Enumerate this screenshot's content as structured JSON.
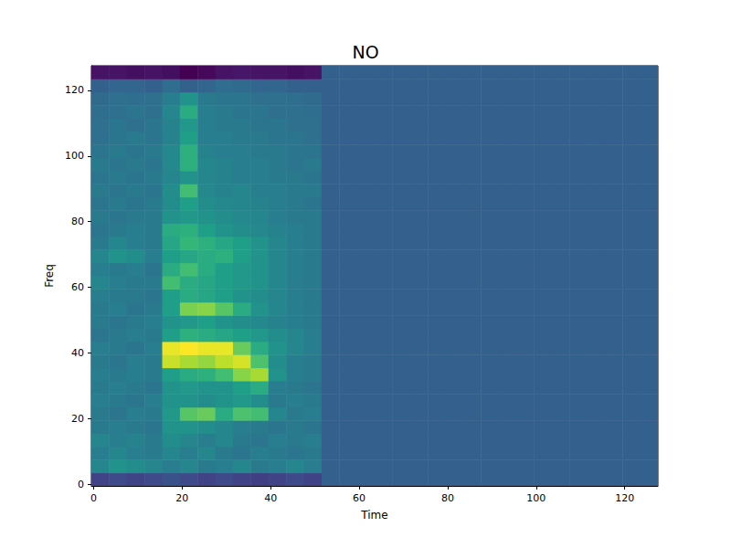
{
  "chart_data": {
    "type": "heatmap",
    "title": "NO",
    "x_label": "Time",
    "y_label": "Freq",
    "xlim": [
      -0.5,
      127.5
    ],
    "xticks": [
      0,
      20,
      40,
      60,
      80,
      100,
      120
    ],
    "ylim": [
      -0.5,
      127.5
    ],
    "yticks": [
      0,
      20,
      40,
      60,
      80,
      100,
      120
    ],
    "grid": false,
    "x": [
      1.5,
      5.5,
      9.5,
      13.5,
      17.5,
      21.5,
      25.5,
      29.5,
      33.5,
      37.5,
      41.5,
      45.5,
      49.5,
      53.5,
      57.5,
      61.5,
      65.5,
      69.5,
      73.5,
      77.5,
      81.5,
      85.5,
      89.5,
      93.5,
      97.5,
      101.5,
      105.5,
      109.5,
      113.5,
      117.5,
      121.5,
      125.5
    ],
    "y": [
      1.5,
      5.5,
      9.5,
      13.5,
      17.5,
      21.5,
      25.5,
      29.5,
      33.5,
      37.5,
      41.5,
      45.5,
      49.5,
      53.5,
      57.5,
      61.5,
      65.5,
      69.5,
      73.5,
      77.5,
      81.5,
      85.5,
      89.5,
      93.5,
      97.5,
      101.5,
      105.5,
      109.5,
      113.5,
      117.5,
      121.5,
      125.5
    ],
    "cells": [
      [
        0.2,
        0.22,
        0.2,
        0.22,
        0.25,
        0.22,
        0.2,
        0.22,
        0.2,
        0.18,
        0.2,
        0.22,
        0.2,
        0.3,
        0.3,
        0.3,
        0.3,
        0.3,
        0.3,
        0.3,
        0.3,
        0.3,
        0.3,
        0.3,
        0.3,
        0.3,
        0.3,
        0.3,
        0.3,
        0.3,
        0.3,
        0.3
      ],
      [
        0.45,
        0.5,
        0.48,
        0.45,
        0.42,
        0.45,
        0.4,
        0.42,
        0.45,
        0.4,
        0.42,
        0.45,
        0.42,
        0.3,
        0.3,
        0.3,
        0.3,
        0.3,
        0.3,
        0.3,
        0.3,
        0.3,
        0.3,
        0.3,
        0.3,
        0.3,
        0.3,
        0.3,
        0.3,
        0.3,
        0.3,
        0.3
      ],
      [
        0.42,
        0.45,
        0.42,
        0.4,
        0.45,
        0.42,
        0.45,
        0.4,
        0.38,
        0.42,
        0.4,
        0.38,
        0.4,
        0.3,
        0.3,
        0.3,
        0.3,
        0.3,
        0.3,
        0.3,
        0.3,
        0.3,
        0.3,
        0.3,
        0.3,
        0.3,
        0.3,
        0.3,
        0.3,
        0.3,
        0.3,
        0.3
      ],
      [
        0.45,
        0.42,
        0.44,
        0.4,
        0.48,
        0.45,
        0.42,
        0.45,
        0.4,
        0.38,
        0.42,
        0.4,
        0.42,
        0.3,
        0.3,
        0.3,
        0.3,
        0.3,
        0.3,
        0.3,
        0.3,
        0.3,
        0.3,
        0.3,
        0.3,
        0.3,
        0.3,
        0.3,
        0.3,
        0.3,
        0.3,
        0.3
      ],
      [
        0.4,
        0.42,
        0.4,
        0.38,
        0.5,
        0.5,
        0.48,
        0.45,
        0.42,
        0.4,
        0.38,
        0.4,
        0.38,
        0.3,
        0.3,
        0.3,
        0.3,
        0.3,
        0.3,
        0.3,
        0.3,
        0.3,
        0.3,
        0.3,
        0.3,
        0.3,
        0.3,
        0.3,
        0.3,
        0.3,
        0.3,
        0.3
      ],
      [
        0.4,
        0.38,
        0.42,
        0.4,
        0.52,
        0.72,
        0.75,
        0.6,
        0.7,
        0.68,
        0.45,
        0.4,
        0.42,
        0.3,
        0.3,
        0.3,
        0.3,
        0.3,
        0.3,
        0.3,
        0.3,
        0.3,
        0.3,
        0.3,
        0.3,
        0.3,
        0.3,
        0.3,
        0.3,
        0.3,
        0.3,
        0.3
      ],
      [
        0.42,
        0.4,
        0.38,
        0.42,
        0.5,
        0.5,
        0.48,
        0.5,
        0.52,
        0.48,
        0.4,
        0.42,
        0.4,
        0.3,
        0.3,
        0.3,
        0.3,
        0.3,
        0.3,
        0.3,
        0.3,
        0.3,
        0.3,
        0.3,
        0.3,
        0.3,
        0.3,
        0.3,
        0.3,
        0.3,
        0.3,
        0.3
      ],
      [
        0.4,
        0.42,
        0.4,
        0.38,
        0.5,
        0.52,
        0.5,
        0.5,
        0.55,
        0.6,
        0.42,
        0.4,
        0.38,
        0.3,
        0.3,
        0.3,
        0.3,
        0.3,
        0.3,
        0.3,
        0.3,
        0.3,
        0.3,
        0.3,
        0.3,
        0.3,
        0.3,
        0.3,
        0.3,
        0.3,
        0.3,
        0.3
      ],
      [
        0.42,
        0.4,
        0.42,
        0.4,
        0.55,
        0.6,
        0.62,
        0.68,
        0.8,
        0.85,
        0.5,
        0.42,
        0.4,
        0.3,
        0.3,
        0.3,
        0.3,
        0.3,
        0.3,
        0.3,
        0.3,
        0.3,
        0.3,
        0.3,
        0.3,
        0.3,
        0.3,
        0.3,
        0.3,
        0.3,
        0.3,
        0.3
      ],
      [
        0.4,
        0.38,
        0.42,
        0.4,
        0.9,
        0.85,
        0.82,
        0.88,
        0.92,
        0.7,
        0.48,
        0.42,
        0.4,
        0.3,
        0.3,
        0.3,
        0.3,
        0.3,
        0.3,
        0.3,
        0.3,
        0.3,
        0.3,
        0.3,
        0.3,
        0.3,
        0.3,
        0.3,
        0.3,
        0.3,
        0.3,
        0.3
      ],
      [
        0.42,
        0.4,
        0.38,
        0.42,
        0.95,
        0.98,
        0.95,
        0.95,
        0.75,
        0.6,
        0.5,
        0.45,
        0.42,
        0.3,
        0.3,
        0.3,
        0.3,
        0.3,
        0.3,
        0.3,
        0.3,
        0.3,
        0.3,
        0.3,
        0.3,
        0.3,
        0.3,
        0.3,
        0.3,
        0.3,
        0.3,
        0.3
      ],
      [
        0.38,
        0.4,
        0.42,
        0.4,
        0.55,
        0.62,
        0.6,
        0.58,
        0.55,
        0.52,
        0.48,
        0.45,
        0.42,
        0.3,
        0.3,
        0.3,
        0.3,
        0.3,
        0.3,
        0.3,
        0.3,
        0.3,
        0.3,
        0.3,
        0.3,
        0.3,
        0.3,
        0.3,
        0.3,
        0.3,
        0.3,
        0.3
      ],
      [
        0.4,
        0.38,
        0.4,
        0.42,
        0.5,
        0.52,
        0.55,
        0.5,
        0.48,
        0.46,
        0.44,
        0.42,
        0.4,
        0.3,
        0.3,
        0.3,
        0.3,
        0.3,
        0.3,
        0.3,
        0.3,
        0.3,
        0.3,
        0.3,
        0.3,
        0.3,
        0.3,
        0.3,
        0.3,
        0.3,
        0.3,
        0.3
      ],
      [
        0.4,
        0.42,
        0.38,
        0.4,
        0.55,
        0.78,
        0.8,
        0.72,
        0.6,
        0.5,
        0.45,
        0.42,
        0.4,
        0.3,
        0.3,
        0.3,
        0.3,
        0.3,
        0.3,
        0.3,
        0.3,
        0.3,
        0.3,
        0.3,
        0.3,
        0.3,
        0.3,
        0.3,
        0.3,
        0.3,
        0.3,
        0.3
      ],
      [
        0.42,
        0.4,
        0.4,
        0.38,
        0.55,
        0.6,
        0.58,
        0.55,
        0.5,
        0.48,
        0.45,
        0.42,
        0.4,
        0.3,
        0.3,
        0.3,
        0.3,
        0.3,
        0.3,
        0.3,
        0.3,
        0.3,
        0.3,
        0.3,
        0.3,
        0.3,
        0.3,
        0.3,
        0.3,
        0.3,
        0.3,
        0.3
      ],
      [
        0.45,
        0.42,
        0.4,
        0.4,
        0.68,
        0.6,
        0.58,
        0.55,
        0.52,
        0.5,
        0.45,
        0.42,
        0.4,
        0.3,
        0.3,
        0.3,
        0.3,
        0.3,
        0.3,
        0.3,
        0.3,
        0.3,
        0.3,
        0.3,
        0.3,
        0.3,
        0.3,
        0.3,
        0.3,
        0.3,
        0.3,
        0.3
      ],
      [
        0.42,
        0.4,
        0.42,
        0.38,
        0.6,
        0.68,
        0.6,
        0.55,
        0.52,
        0.5,
        0.45,
        0.42,
        0.4,
        0.3,
        0.3,
        0.3,
        0.3,
        0.3,
        0.3,
        0.3,
        0.3,
        0.3,
        0.3,
        0.3,
        0.3,
        0.3,
        0.3,
        0.3,
        0.3,
        0.3,
        0.3,
        0.3
      ],
      [
        0.45,
        0.5,
        0.48,
        0.42,
        0.55,
        0.58,
        0.6,
        0.62,
        0.55,
        0.5,
        0.45,
        0.42,
        0.4,
        0.3,
        0.3,
        0.3,
        0.3,
        0.3,
        0.3,
        0.3,
        0.3,
        0.3,
        0.3,
        0.3,
        0.3,
        0.3,
        0.3,
        0.3,
        0.3,
        0.3,
        0.3,
        0.3
      ],
      [
        0.4,
        0.45,
        0.42,
        0.4,
        0.58,
        0.65,
        0.62,
        0.58,
        0.55,
        0.5,
        0.45,
        0.42,
        0.4,
        0.3,
        0.3,
        0.3,
        0.3,
        0.3,
        0.3,
        0.3,
        0.3,
        0.3,
        0.3,
        0.3,
        0.3,
        0.3,
        0.3,
        0.3,
        0.3,
        0.3,
        0.3,
        0.3
      ],
      [
        0.38,
        0.4,
        0.42,
        0.4,
        0.6,
        0.62,
        0.55,
        0.5,
        0.48,
        0.46,
        0.44,
        0.42,
        0.4,
        0.3,
        0.3,
        0.3,
        0.3,
        0.3,
        0.3,
        0.3,
        0.3,
        0.3,
        0.3,
        0.3,
        0.3,
        0.3,
        0.3,
        0.3,
        0.3,
        0.3,
        0.3,
        0.3
      ],
      [
        0.4,
        0.38,
        0.4,
        0.4,
        0.5,
        0.52,
        0.5,
        0.48,
        0.46,
        0.45,
        0.42,
        0.4,
        0.4,
        0.3,
        0.3,
        0.3,
        0.3,
        0.3,
        0.3,
        0.3,
        0.3,
        0.3,
        0.3,
        0.3,
        0.3,
        0.3,
        0.3,
        0.3,
        0.3,
        0.3,
        0.3,
        0.3
      ],
      [
        0.38,
        0.4,
        0.38,
        0.4,
        0.48,
        0.55,
        0.48,
        0.46,
        0.45,
        0.44,
        0.42,
        0.4,
        0.38,
        0.3,
        0.3,
        0.3,
        0.3,
        0.3,
        0.3,
        0.3,
        0.3,
        0.3,
        0.3,
        0.3,
        0.3,
        0.3,
        0.3,
        0.3,
        0.3,
        0.3,
        0.3,
        0.3
      ],
      [
        0.4,
        0.38,
        0.4,
        0.38,
        0.48,
        0.68,
        0.46,
        0.44,
        0.45,
        0.42,
        0.42,
        0.4,
        0.4,
        0.3,
        0.3,
        0.3,
        0.3,
        0.3,
        0.3,
        0.3,
        0.3,
        0.3,
        0.3,
        0.3,
        0.3,
        0.3,
        0.3,
        0.3,
        0.3,
        0.3,
        0.3,
        0.3
      ],
      [
        0.38,
        0.4,
        0.38,
        0.4,
        0.45,
        0.5,
        0.45,
        0.44,
        0.42,
        0.42,
        0.4,
        0.4,
        0.38,
        0.3,
        0.3,
        0.3,
        0.3,
        0.3,
        0.3,
        0.3,
        0.3,
        0.3,
        0.3,
        0.3,
        0.3,
        0.3,
        0.3,
        0.3,
        0.3,
        0.3,
        0.3,
        0.3
      ],
      [
        0.4,
        0.38,
        0.4,
        0.38,
        0.46,
        0.62,
        0.45,
        0.44,
        0.42,
        0.42,
        0.4,
        0.38,
        0.4,
        0.3,
        0.3,
        0.3,
        0.3,
        0.3,
        0.3,
        0.3,
        0.3,
        0.3,
        0.3,
        0.3,
        0.3,
        0.3,
        0.3,
        0.3,
        0.3,
        0.3,
        0.3,
        0.3
      ],
      [
        0.38,
        0.4,
        0.38,
        0.4,
        0.46,
        0.62,
        0.44,
        0.42,
        0.42,
        0.4,
        0.4,
        0.38,
        0.38,
        0.3,
        0.3,
        0.3,
        0.3,
        0.3,
        0.3,
        0.3,
        0.3,
        0.3,
        0.3,
        0.3,
        0.3,
        0.3,
        0.3,
        0.3,
        0.3,
        0.3,
        0.3,
        0.3
      ],
      [
        0.36,
        0.38,
        0.4,
        0.38,
        0.44,
        0.55,
        0.42,
        0.42,
        0.4,
        0.4,
        0.38,
        0.38,
        0.36,
        0.3,
        0.3,
        0.3,
        0.3,
        0.3,
        0.3,
        0.3,
        0.3,
        0.3,
        0.3,
        0.3,
        0.3,
        0.3,
        0.3,
        0.3,
        0.3,
        0.3,
        0.3,
        0.3
      ],
      [
        0.36,
        0.38,
        0.36,
        0.38,
        0.44,
        0.52,
        0.42,
        0.4,
        0.4,
        0.38,
        0.38,
        0.36,
        0.36,
        0.3,
        0.3,
        0.3,
        0.3,
        0.3,
        0.3,
        0.3,
        0.3,
        0.3,
        0.3,
        0.3,
        0.3,
        0.3,
        0.3,
        0.3,
        0.3,
        0.3,
        0.3,
        0.3
      ],
      [
        0.35,
        0.36,
        0.38,
        0.36,
        0.45,
        0.6,
        0.42,
        0.4,
        0.38,
        0.38,
        0.36,
        0.36,
        0.35,
        0.3,
        0.3,
        0.3,
        0.3,
        0.3,
        0.3,
        0.3,
        0.3,
        0.3,
        0.3,
        0.3,
        0.3,
        0.3,
        0.3,
        0.3,
        0.3,
        0.3,
        0.3,
        0.3
      ],
      [
        0.34,
        0.36,
        0.35,
        0.36,
        0.42,
        0.5,
        0.4,
        0.38,
        0.38,
        0.36,
        0.36,
        0.35,
        0.34,
        0.3,
        0.3,
        0.3,
        0.3,
        0.3,
        0.3,
        0.3,
        0.3,
        0.3,
        0.3,
        0.3,
        0.3,
        0.3,
        0.3,
        0.3,
        0.3,
        0.3,
        0.3,
        0.3
      ],
      [
        0.3,
        0.32,
        0.32,
        0.3,
        0.35,
        0.3,
        0.32,
        0.35,
        0.34,
        0.32,
        0.32,
        0.3,
        0.3,
        0.3,
        0.3,
        0.3,
        0.3,
        0.3,
        0.3,
        0.3,
        0.3,
        0.3,
        0.3,
        0.3,
        0.3,
        0.3,
        0.3,
        0.3,
        0.3,
        0.3,
        0.3,
        0.3
      ],
      [
        0.05,
        0.05,
        0.04,
        0.05,
        0.04,
        0.0,
        0.02,
        0.05,
        0.06,
        0.05,
        0.05,
        0.04,
        0.05,
        0.3,
        0.3,
        0.3,
        0.3,
        0.3,
        0.3,
        0.3,
        0.3,
        0.3,
        0.3,
        0.3,
        0.3,
        0.3,
        0.3,
        0.3,
        0.3,
        0.3,
        0.3,
        0.3
      ]
    ]
  }
}
